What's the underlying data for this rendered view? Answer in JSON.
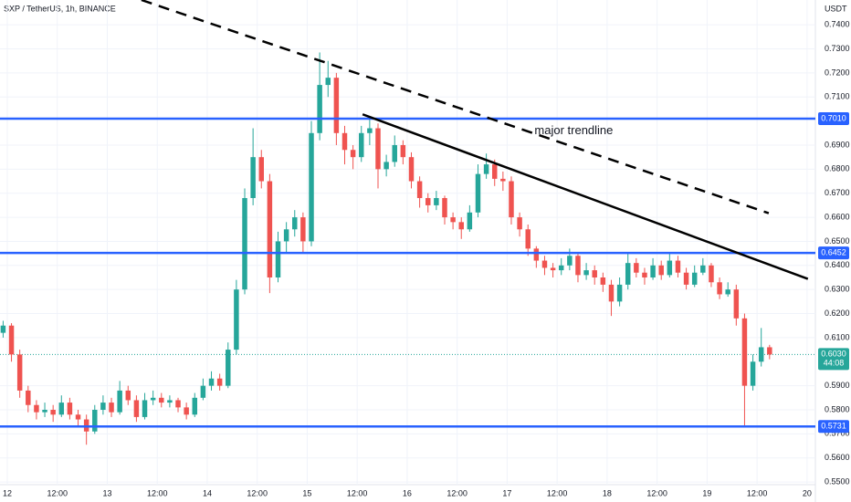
{
  "chart_data": {
    "type": "candlestick",
    "title": "SXP / TetherUS, 1h, BINANCE",
    "y_unit": "USDT",
    "up_color": "#26a69a",
    "down_color": "#ef5350",
    "level_color": "#2962ff",
    "grid": true,
    "xlim": [
      -1.75,
      194
    ],
    "ylim": [
      0.5489,
      0.7503
    ],
    "xticks": [
      {
        "value": 0,
        "label": "12"
      },
      {
        "value": 12,
        "label": "12:00"
      },
      {
        "value": 24,
        "label": "13"
      },
      {
        "value": 36,
        "label": "12:00"
      },
      {
        "value": 48,
        "label": "14"
      },
      {
        "value": 60,
        "label": "12:00"
      },
      {
        "value": 72,
        "label": "15"
      },
      {
        "value": 84,
        "label": "12:00"
      },
      {
        "value": 96,
        "label": "16"
      },
      {
        "value": 108,
        "label": "12:00"
      },
      {
        "value": 120,
        "label": "17"
      },
      {
        "value": 132,
        "label": "12:00"
      },
      {
        "value": 144,
        "label": "18"
      },
      {
        "value": 156,
        "label": "12:00"
      },
      {
        "value": 168,
        "label": "19"
      },
      {
        "value": 180,
        "label": "12:00"
      },
      {
        "value": 192,
        "label": "20"
      }
    ],
    "yticks": [
      {
        "value": 0.55,
        "label": "0.5500"
      },
      {
        "value": 0.56,
        "label": "0.5600"
      },
      {
        "value": 0.57,
        "label": "0.5700"
      },
      {
        "value": 0.58,
        "label": "0.5800"
      },
      {
        "value": 0.59,
        "label": "0.5900"
      },
      {
        "value": 0.61,
        "label": "0.6100"
      },
      {
        "value": 0.62,
        "label": "0.6200"
      },
      {
        "value": 0.63,
        "label": "0.6300"
      },
      {
        "value": 0.64,
        "label": "0.6400"
      },
      {
        "value": 0.65,
        "label": "0.6500"
      },
      {
        "value": 0.66,
        "label": "0.6600"
      },
      {
        "value": 0.67,
        "label": "0.6700"
      },
      {
        "value": 0.68,
        "label": "0.6800"
      },
      {
        "value": 0.69,
        "label": "0.6900"
      },
      {
        "value": 0.71,
        "label": "0.7100"
      },
      {
        "value": 0.72,
        "label": "0.7200"
      },
      {
        "value": 0.73,
        "label": "0.7300"
      },
      {
        "value": 0.74,
        "label": "0.7400"
      }
    ],
    "levels": [
      {
        "value": 0.701,
        "label": "0.7010"
      },
      {
        "value": 0.6452,
        "label": "0.6452"
      },
      {
        "value": 0.5731,
        "label": "0.5731"
      }
    ],
    "current": {
      "value": 0.603,
      "label": "0.6030",
      "countdown": "44:08"
    },
    "trendlines": [
      {
        "style": "dashed",
        "x": [
          32.2,
          182.8
        ],
        "y": [
          0.7503,
          0.6617
        ]
      },
      {
        "style": "solid",
        "x": [
          85.3,
          192.2
        ],
        "y": [
          0.7028,
          0.6344
        ]
      }
    ],
    "annotation": {
      "text": "major trendline",
      "x": 136,
      "y": 0.6959
    },
    "x": [
      -1,
      1,
      3,
      5,
      7,
      9,
      11,
      13,
      15,
      17,
      19,
      21,
      23,
      25,
      27,
      29,
      31,
      33,
      35,
      37,
      39,
      41,
      43,
      45,
      47,
      49,
      51,
      53,
      55,
      57,
      59,
      61,
      63,
      65,
      67,
      69,
      71,
      73,
      75,
      77,
      79,
      81,
      83,
      85,
      87,
      89,
      91,
      93,
      95,
      97,
      99,
      101,
      103,
      105,
      107,
      109,
      111,
      113,
      115,
      117,
      119,
      121,
      123,
      125,
      127,
      129,
      131,
      133,
      135,
      137,
      139,
      141,
      143,
      145,
      147,
      149,
      151,
      153,
      155,
      157,
      159,
      161,
      163,
      165,
      167,
      169,
      171,
      173,
      175,
      177,
      179,
      181,
      183
    ],
    "candles": [
      [
        0.612,
        0.617,
        0.61,
        0.615
      ],
      [
        0.615,
        0.616,
        0.6,
        0.603
      ],
      [
        0.603,
        0.605,
        0.585,
        0.588
      ],
      [
        0.588,
        0.59,
        0.579,
        0.582
      ],
      [
        0.582,
        0.584,
        0.576,
        0.579
      ],
      [
        0.579,
        0.583,
        0.577,
        0.58
      ],
      [
        0.58,
        0.582,
        0.575,
        0.578
      ],
      [
        0.578,
        0.586,
        0.577,
        0.583
      ],
      [
        0.583,
        0.585,
        0.576,
        0.578
      ],
      [
        0.578,
        0.58,
        0.573,
        0.576
      ],
      [
        0.576,
        0.578,
        0.5655,
        0.571
      ],
      [
        0.571,
        0.582,
        0.57,
        0.58
      ],
      [
        0.58,
        0.586,
        0.578,
        0.583
      ],
      [
        0.583,
        0.585,
        0.577,
        0.579
      ],
      [
        0.579,
        0.592,
        0.578,
        0.588
      ],
      [
        0.588,
        0.59,
        0.582,
        0.584
      ],
      [
        0.584,
        0.586,
        0.575,
        0.577
      ],
      [
        0.577,
        0.587,
        0.576,
        0.584
      ],
      [
        0.584,
        0.588,
        0.582,
        0.585
      ],
      [
        0.585,
        0.587,
        0.581,
        0.583
      ],
      [
        0.583,
        0.586,
        0.581,
        0.584
      ],
      [
        0.584,
        0.585,
        0.579,
        0.581
      ],
      [
        0.581,
        0.583,
        0.576,
        0.578
      ],
      [
        0.578,
        0.587,
        0.577,
        0.585
      ],
      [
        0.585,
        0.593,
        0.584,
        0.59
      ],
      [
        0.59,
        0.596,
        0.588,
        0.593
      ],
      [
        0.593,
        0.595,
        0.588,
        0.59
      ],
      [
        0.59,
        0.608,
        0.589,
        0.605
      ],
      [
        0.605,
        0.634,
        0.603,
        0.63
      ],
      [
        0.63,
        0.672,
        0.628,
        0.668
      ],
      [
        0.668,
        0.697,
        0.665,
        0.685
      ],
      [
        0.685,
        0.688,
        0.672,
        0.675
      ],
      [
        0.675,
        0.678,
        0.6285,
        0.635
      ],
      [
        0.635,
        0.654,
        0.633,
        0.65
      ],
      [
        0.65,
        0.658,
        0.645,
        0.655
      ],
      [
        0.655,
        0.663,
        0.652,
        0.66
      ],
      [
        0.66,
        0.662,
        0.645,
        0.65
      ],
      [
        0.65,
        0.7,
        0.648,
        0.695
      ],
      [
        0.695,
        0.7285,
        0.692,
        0.715
      ],
      [
        0.715,
        0.725,
        0.71,
        0.718
      ],
      [
        0.718,
        0.72,
        0.69,
        0.695
      ],
      [
        0.695,
        0.698,
        0.682,
        0.688
      ],
      [
        0.688,
        0.69,
        0.68,
        0.685
      ],
      [
        0.685,
        0.698,
        0.683,
        0.695
      ],
      [
        0.695,
        0.702,
        0.69,
        0.697
      ],
      [
        0.697,
        0.699,
        0.672,
        0.68
      ],
      [
        0.68,
        0.686,
        0.677,
        0.683
      ],
      [
        0.683,
        0.694,
        0.681,
        0.69
      ],
      [
        0.69,
        0.692,
        0.682,
        0.685
      ],
      [
        0.685,
        0.687,
        0.672,
        0.675
      ],
      [
        0.675,
        0.677,
        0.664,
        0.668
      ],
      [
        0.668,
        0.67,
        0.662,
        0.665
      ],
      [
        0.665,
        0.671,
        0.663,
        0.668
      ],
      [
        0.668,
        0.669,
        0.657,
        0.66
      ],
      [
        0.66,
        0.662,
        0.655,
        0.658
      ],
      [
        0.658,
        0.66,
        0.651,
        0.655
      ],
      [
        0.655,
        0.665,
        0.654,
        0.662
      ],
      [
        0.662,
        0.682,
        0.66,
        0.678
      ],
      [
        0.678,
        0.6865,
        0.676,
        0.682
      ],
      [
        0.682,
        0.684,
        0.673,
        0.676
      ],
      [
        0.676,
        0.679,
        0.671,
        0.675
      ],
      [
        0.675,
        0.677,
        0.657,
        0.66
      ],
      [
        0.66,
        0.662,
        0.652,
        0.655
      ],
      [
        0.655,
        0.657,
        0.644,
        0.647
      ],
      [
        0.647,
        0.648,
        0.639,
        0.642
      ],
      [
        0.642,
        0.644,
        0.636,
        0.639
      ],
      [
        0.639,
        0.641,
        0.635,
        0.638
      ],
      [
        0.638,
        0.643,
        0.636,
        0.64
      ],
      [
        0.64,
        0.647,
        0.638,
        0.644
      ],
      [
        0.644,
        0.645,
        0.633,
        0.636
      ],
      [
        0.636,
        0.641,
        0.634,
        0.638
      ],
      [
        0.638,
        0.64,
        0.632,
        0.635
      ],
      [
        0.635,
        0.637,
        0.629,
        0.632
      ],
      [
        0.632,
        0.634,
        0.619,
        0.625
      ],
      [
        0.625,
        0.635,
        0.623,
        0.632
      ],
      [
        0.632,
        0.645,
        0.63,
        0.641
      ],
      [
        0.641,
        0.643,
        0.635,
        0.637
      ],
      [
        0.637,
        0.639,
        0.632,
        0.635
      ],
      [
        0.635,
        0.643,
        0.634,
        0.64
      ],
      [
        0.64,
        0.642,
        0.634,
        0.636
      ],
      [
        0.636,
        0.645,
        0.635,
        0.642
      ],
      [
        0.642,
        0.644,
        0.635,
        0.637
      ],
      [
        0.637,
        0.639,
        0.63,
        0.632
      ],
      [
        0.632,
        0.64,
        0.631,
        0.637
      ],
      [
        0.637,
        0.643,
        0.636,
        0.64
      ],
      [
        0.64,
        0.641,
        0.631,
        0.633
      ],
      [
        0.633,
        0.635,
        0.626,
        0.628
      ],
      [
        0.628,
        0.633,
        0.627,
        0.63
      ],
      [
        0.63,
        0.632,
        0.615,
        0.618
      ],
      [
        0.618,
        0.62,
        0.5735,
        0.59
      ],
      [
        0.59,
        0.603,
        0.588,
        0.6
      ],
      [
        0.6,
        0.614,
        0.598,
        0.606
      ],
      [
        0.606,
        0.607,
        0.601,
        0.603
      ]
    ]
  }
}
